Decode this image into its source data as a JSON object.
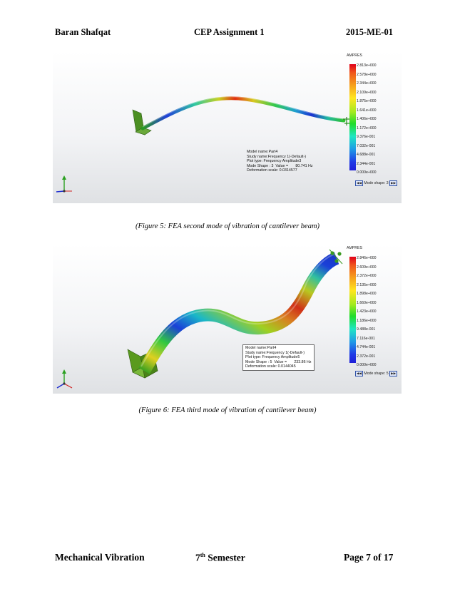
{
  "header": {
    "left": "Baran Shafqat",
    "center": "CEP Assignment 1",
    "right": "2015-ME-01"
  },
  "footer": {
    "left": "Mechanical Vibration",
    "center_prefix": "7",
    "center_sup": "th",
    "center_suffix": " Semester",
    "right": "Page 7 of 17"
  },
  "figure5": {
    "legend_title": "AMPRES",
    "ticks": [
      "2.813e+000",
      "2.578e+000",
      "2.344e+000",
      "2.109e+000",
      "1.875e+000",
      "1.641e+000",
      "1.406e+000",
      "1.172e+000",
      "9.376e-001",
      "7.032e-001",
      "4.688e-001",
      "2.344e-001",
      "0.000e+000"
    ],
    "info": [
      "Model name:Part4",
      "Study name:Frequency 1(-Default-)",
      "Plot type: Frequency Amplitude3",
      "Mode Shape : 3  Value =       80.741 Hz",
      "Deformation scale: 0.0314577"
    ],
    "mode_shape_label": "Mode shape: 3",
    "caption": "(Figure 5: FEA second mode of vibration of cantilever beam)"
  },
  "figure6": {
    "legend_title": "AMPRES",
    "ticks": [
      "2.846e+000",
      "2.609e+000",
      "2.372e+000",
      "2.135e+000",
      "1.898e+000",
      "1.660e+000",
      "1.423e+000",
      "1.186e+000",
      "9.488e-001",
      "7.116e-001",
      "4.744e-001",
      "2.372e-001",
      "0.000e+000"
    ],
    "info": [
      "Model name:Part4",
      "Study name:Frequency 1(-Default-)",
      "Plot type: Frequency Amplitude5",
      "Mode Shape : 5  Value =       233.86 Hz",
      "Deformation scale: 0.0144045"
    ],
    "mode_shape_label": "Mode shape: 5",
    "caption": "(Figure 6: FEA third mode of vibration of cantilever beam)"
  },
  "colors": {
    "max": "#e0001a",
    "mid": "#1fdc2a",
    "min": "#1f1fd8",
    "fixture": "#3a8a1e"
  }
}
